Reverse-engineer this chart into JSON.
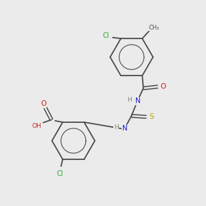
{
  "background_color": "#ebebeb",
  "colors": {
    "bond": "#4a4a4a",
    "H": "#808080",
    "N": "#1a1acc",
    "O": "#cc1a1a",
    "S": "#aaaa00",
    "Cl": "#22aa22"
  },
  "figsize": [
    3.0,
    3.0
  ],
  "dpi": 100
}
